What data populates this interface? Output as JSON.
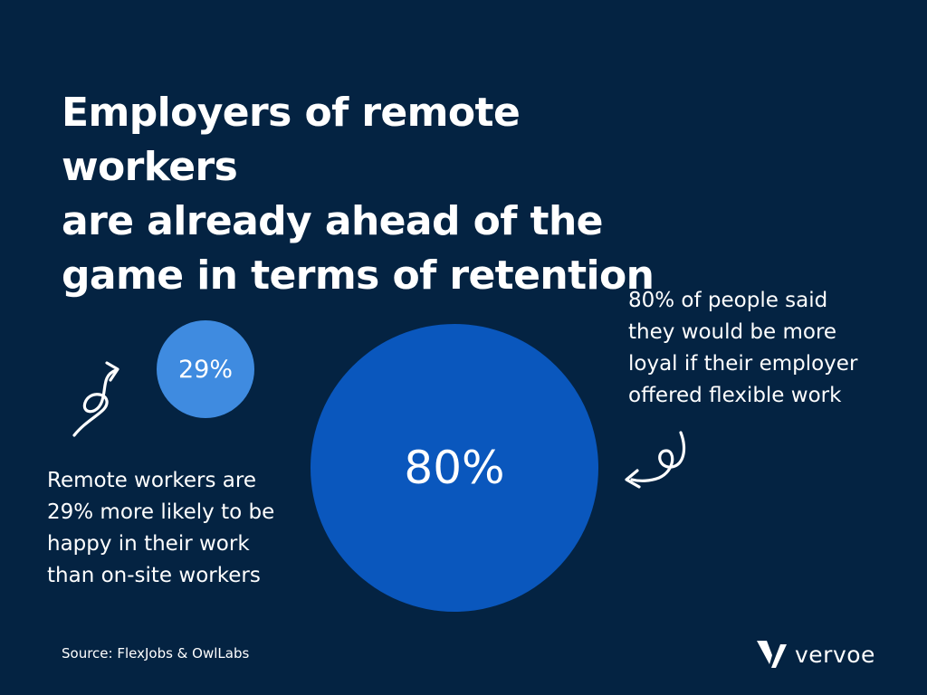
{
  "title_lines": [
    "Employers of remote workers",
    "are already ahead of the",
    "game in terms of retention"
  ],
  "small_stat": "29%",
  "big_stat": "80%",
  "right_text_lines": [
    "80% of people said",
    "they would be more",
    "loyal if their employer",
    "offered flexible work"
  ],
  "left_text_lines": [
    "Remote workers are",
    "29% more likely to be",
    "happy in their work",
    "than on-site workers"
  ],
  "source": "Source: FlexJobs & OwlLabs",
  "logo": {
    "word": "vervoe",
    "icon": "vervoe-v-mark-icon"
  },
  "colors": {
    "background": "#042342",
    "small_circle": "#3f8be0",
    "big_circle": "#0a57bd",
    "text": "#ffffff"
  }
}
